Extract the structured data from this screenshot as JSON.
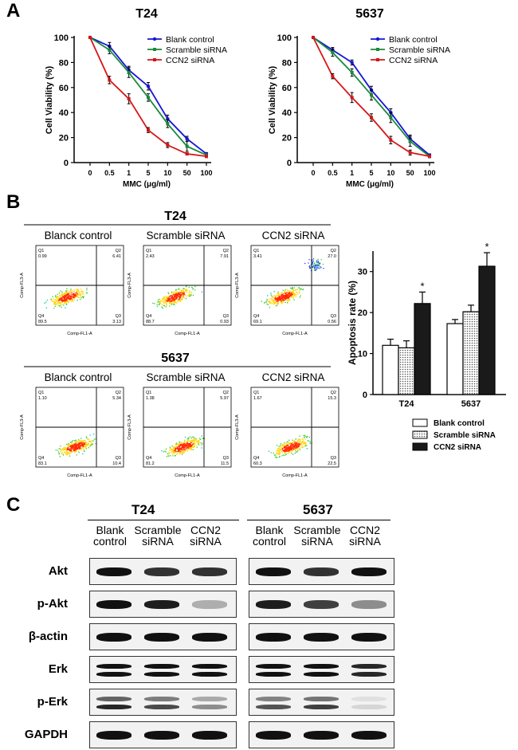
{
  "panels": {
    "a": "A",
    "b": "B",
    "c": "C"
  },
  "panelA": {
    "charts": [
      {
        "title": "T24",
        "xlabel": "MMC (μg/ml)",
        "ylabel": "Cell Viability (%)"
      },
      {
        "title": "5637",
        "xlabel": "MMC (μg/ml)",
        "ylabel": "Cell Viability (%)"
      }
    ],
    "legend": [
      "Blank control",
      "Scramble siRNA",
      "CCN2 siRNA"
    ],
    "colors": [
      "#1515d6",
      "#1a8a3a",
      "#d61515"
    ]
  },
  "chart_data": [
    {
      "type": "line",
      "title": "T24",
      "xlabel": "MMC (μg/ml)",
      "ylabel": "Cell Viability (%)",
      "categories": [
        "0",
        "0.5",
        "1",
        "5",
        "10",
        "50",
        "100"
      ],
      "ylim": [
        0,
        100
      ],
      "yticks": [
        0,
        20,
        40,
        60,
        80,
        100
      ],
      "series": [
        {
          "name": "Blank control",
          "values": [
            100,
            93,
            74,
            61,
            35,
            19,
            7
          ],
          "errors": [
            0,
            3,
            3,
            3,
            3,
            2,
            1
          ]
        },
        {
          "name": "Scramble siRNA",
          "values": [
            100,
            90,
            72,
            52,
            31,
            13,
            6
          ],
          "errors": [
            0,
            3,
            4,
            3,
            3,
            4,
            1
          ]
        },
        {
          "name": "CCN2 siRNA",
          "values": [
            100,
            66,
            51,
            26,
            14,
            7,
            5
          ],
          "errors": [
            0,
            3,
            4,
            2,
            2,
            1,
            1
          ]
        }
      ]
    },
    {
      "type": "line",
      "title": "5637",
      "xlabel": "MMC (μg/ml)",
      "ylabel": "Cell Viability (%)",
      "categories": [
        "0",
        "0.5",
        "1",
        "5",
        "10",
        "50",
        "100"
      ],
      "ylim": [
        0,
        100
      ],
      "yticks": [
        0,
        20,
        40,
        60,
        80,
        100
      ],
      "series": [
        {
          "name": "Blank control",
          "values": [
            100,
            90,
            80,
            58,
            40,
            19,
            6
          ],
          "errors": [
            0,
            2,
            2,
            3,
            3,
            3,
            1
          ]
        },
        {
          "name": "Scramble siRNA",
          "values": [
            100,
            88,
            72,
            54,
            36,
            17,
            5
          ],
          "errors": [
            0,
            3,
            3,
            4,
            4,
            4,
            1
          ]
        },
        {
          "name": "CCN2 siRNA",
          "values": [
            100,
            69,
            52,
            36,
            18,
            8,
            5
          ],
          "errors": [
            0,
            2,
            4,
            3,
            3,
            2,
            1
          ]
        }
      ]
    },
    {
      "type": "bar",
      "ylabel": "Apoptosis rate (%)",
      "categories": [
        "T24",
        "5637"
      ],
      "ylim": [
        0,
        35
      ],
      "yticks": [
        0,
        10,
        20,
        30
      ],
      "series": [
        {
          "name": "Blank control",
          "values": [
            12,
            17.3
          ],
          "errors": [
            1.5,
            1
          ]
        },
        {
          "name": "Scramble siRNA",
          "values": [
            11.4,
            20.2
          ],
          "errors": [
            1.7,
            1.6
          ]
        },
        {
          "name": "CCN2 siRNA",
          "values": [
            22.2,
            31.3
          ],
          "errors": [
            2.8,
            3.3
          ]
        }
      ],
      "significance": [
        "*",
        "*"
      ]
    }
  ],
  "panelB": {
    "groups": [
      {
        "title": "T24",
        "plots": [
          {
            "label": "Blanck control",
            "q1": "0.99",
            "q2": "6.41",
            "q3": "3.13",
            "q4": "89.5"
          },
          {
            "label": "Scramble siRNA",
            "q1": "2.43",
            "q2": "7.91",
            "q3": "0.93",
            "q4": "88.7"
          },
          {
            "label": "CCN2 siRNA",
            "q1": "3.41",
            "q2": "27.0",
            "q3": "0.56",
            "q4": "69.1"
          }
        ]
      },
      {
        "title": "5637",
        "plots": [
          {
            "label": "Blanck control",
            "q1": "1.10",
            "q2": "5.34",
            "q3": "10.4",
            "q4": "83.1"
          },
          {
            "label": "Scramble siRNA",
            "q1": "1.38",
            "q2": "5.97",
            "q3": "11.5",
            "q4": "81.2"
          },
          {
            "label": "CCN2 siRNA",
            "q1": "1.67",
            "q2": "15.3",
            "q3": "22.5",
            "q4": "60.3"
          }
        ]
      }
    ],
    "quadrant_names": [
      "Q1",
      "Q2",
      "Q3",
      "Q4"
    ],
    "xaxis": "Comp-FL1-A",
    "yaxis": "Comp-FL3-A",
    "legend": [
      "Blank control",
      "Scramble siRNA",
      "CCN2 siRNA"
    ]
  },
  "panelC": {
    "groups": [
      {
        "title": "T24",
        "columns": [
          [
            "Blank",
            "control"
          ],
          [
            "Scramble",
            "siRNA"
          ],
          [
            "CCN2",
            "siRNA"
          ]
        ]
      },
      {
        "title": "5637",
        "columns": [
          [
            "Blank",
            "control"
          ],
          [
            "Scramble",
            "siRNA"
          ],
          [
            "CCN2",
            "siRNA"
          ]
        ]
      }
    ],
    "rows": [
      {
        "label": "Akt",
        "t24": [
          1,
          0.85,
          0.85
        ],
        "c5637": [
          1,
          0.85,
          1
        ]
      },
      {
        "label": "p-Akt",
        "t24": [
          1,
          0.95,
          0.3
        ],
        "c5637": [
          0.95,
          0.8,
          0.45
        ]
      },
      {
        "label": "β-actin",
        "t24": [
          1,
          1,
          1
        ],
        "c5637": [
          1,
          1,
          1
        ]
      },
      {
        "label": "Erk",
        "t24": [
          1,
          1,
          1
        ],
        "c5637": [
          1,
          1,
          0.9
        ]
      },
      {
        "label": "p-Erk",
        "t24": [
          0.9,
          0.75,
          0.45
        ],
        "c5637": [
          0.7,
          0.8,
          0.12
        ]
      },
      {
        "label": "GAPDH",
        "t24": [
          1,
          1,
          1
        ],
        "c5637": [
          1,
          1,
          1
        ]
      }
    ]
  }
}
